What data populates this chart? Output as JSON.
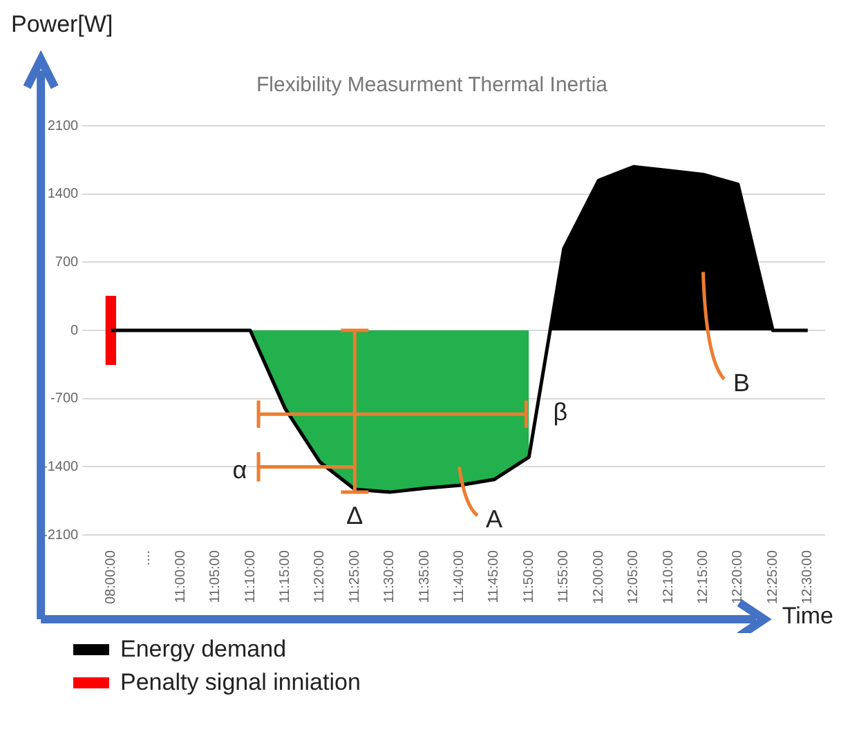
{
  "chart_data": {
    "type": "area",
    "title": "Flexibility Measurment Thermal Inertia",
    "xlabel": "Time",
    "ylabel": "Power[W]",
    "categories": [
      "08:00:00",
      "....",
      "11:00:00",
      "11:05:00",
      "11:10:00",
      "11:15:00",
      "11:20:00",
      "11:25:00",
      "11:30:00",
      "11:35:00",
      "11:40:00",
      "11:45:00",
      "11:50:00",
      "11:55:00",
      "12:00:00",
      "12:05:00",
      "12:10:00",
      "12:15:00",
      "12:20:00",
      "12:25:00",
      "12:30:00"
    ],
    "series": [
      {
        "color": "#22b14c",
        "values": [
          null,
          null,
          null,
          null,
          0,
          -800,
          -1350,
          -1630,
          -1660,
          -1620,
          -1590,
          -1530,
          -1300,
          null,
          null,
          null,
          null,
          null,
          null,
          null,
          null
        ]
      },
      {
        "name": "Energy demand",
        "color": "#000000",
        "values": [
          0,
          0,
          0,
          0,
          0,
          -800,
          -1350,
          -1630,
          -1660,
          -1620,
          -1590,
          -1530,
          -1300,
          840,
          1540,
          1680,
          1640,
          1600,
          1500,
          0,
          0
        ]
      },
      {
        "name": "Penalty signal inniation",
        "type": "bar",
        "color": "#ff0000",
        "base": [
          -350,
          null,
          null,
          null,
          null,
          null,
          null,
          null,
          null,
          null,
          null,
          null,
          null,
          null,
          null,
          null,
          null,
          null,
          null,
          null,
          null
        ],
        "values": [
          700,
          null,
          null,
          null,
          null,
          null,
          null,
          null,
          null,
          null,
          null,
          null,
          null,
          null,
          null,
          null,
          null,
          null,
          null,
          null,
          null
        ]
      }
    ],
    "ylim": [
      -2100,
      2100
    ],
    "yticks": [
      2100,
      1400,
      700,
      0,
      -700,
      -1400,
      -2100
    ],
    "grid": "y",
    "legend": "bottom left",
    "annotations": [
      "α",
      "β",
      {
        "text": "Δ",
        "x": "11:25:00",
        "y": -1630
      },
      "A",
      "B"
    ]
  }
}
